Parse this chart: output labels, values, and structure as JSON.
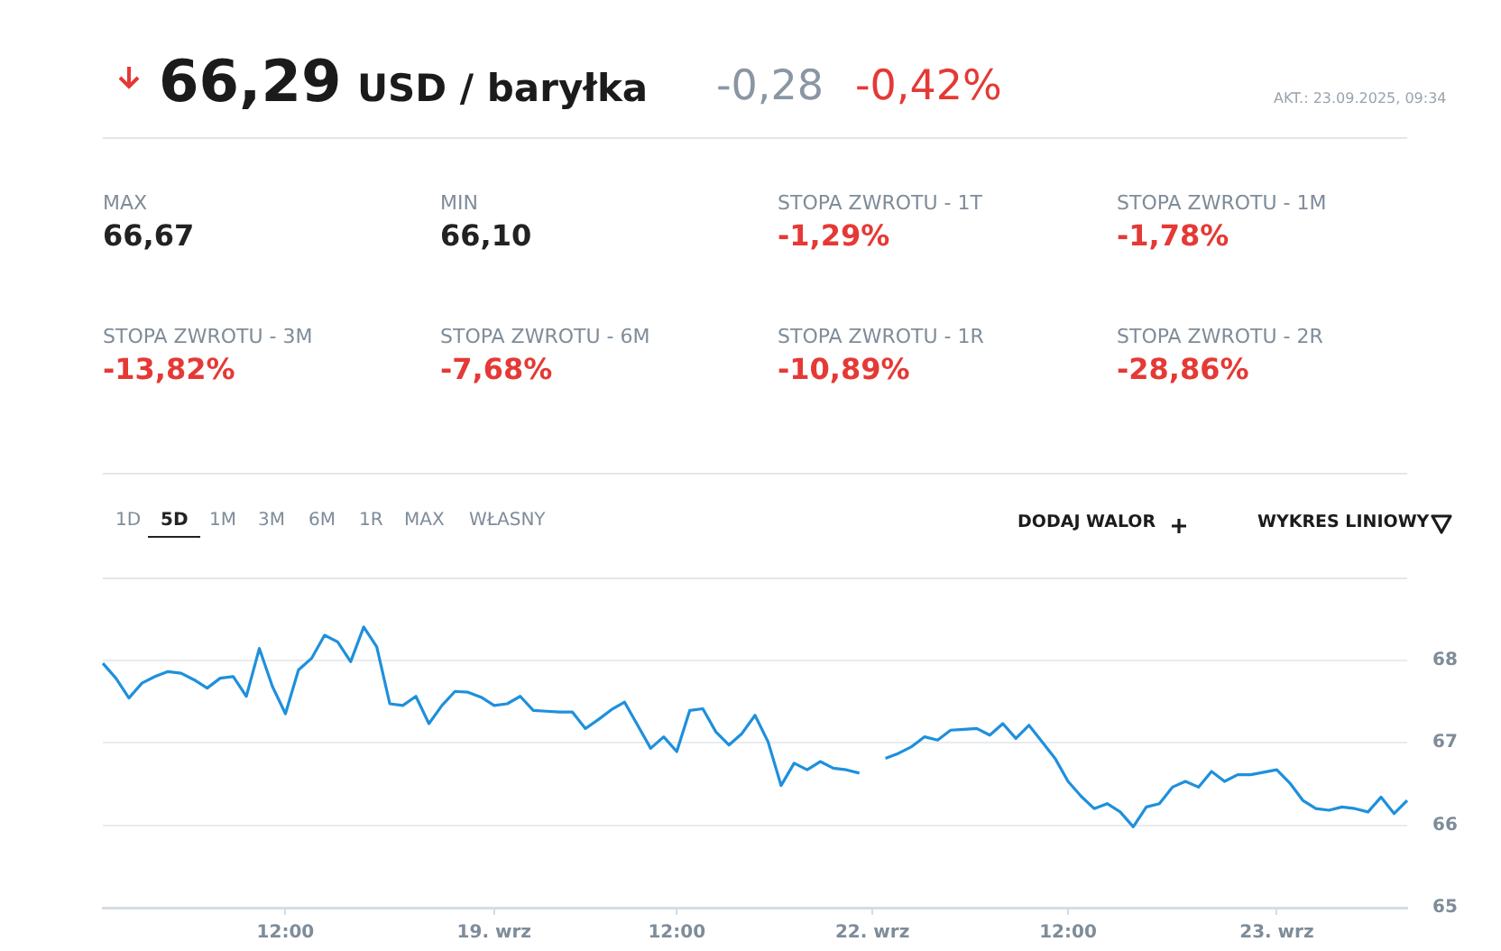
{
  "chart_data": {
    "type": "line",
    "title": "66,29",
    "subtitle": "USD / baryłka",
    "annotations": [
      "-0,28",
      "-0,42%",
      "AKT.: 23.09.2025, 09:34",
      "MAX",
      "66,67",
      "MIN",
      "66,10",
      "STOPA ZWROTU - 1T",
      "-1,29%",
      "STOPA ZWROTU - 1M",
      "-1,78%",
      "STOPA ZWROTU - 3M",
      "-13,82%",
      "STOPA ZWROTU - 6M",
      "-7,68%",
      "STOPA ZWROTU - 1R",
      "-10,89%",
      "STOPA ZWROTU - 2R",
      "-28,86%",
      "1D",
      "5D",
      "1M",
      "3M",
      "6M",
      "1R",
      "MAX",
      "WŁASNY",
      "DODAJ WALOR",
      "WYKRES LINIOWY"
    ],
    "categories": [
      null,
      null,
      null,
      null,
      null,
      null,
      null,
      null,
      null,
      null,
      null,
      null,
      null,
      null,
      "12:00",
      null,
      null,
      null,
      null,
      null,
      null,
      null,
      null,
      null,
      null,
      null,
      null,
      null,
      null,
      null,
      "19. wrz",
      null,
      null,
      null,
      null,
      null,
      null,
      null,
      null,
      null,
      null,
      null,
      null,
      null,
      "12:00",
      null,
      null,
      null,
      null,
      null,
      null,
      null,
      null,
      null,
      null,
      null,
      null,
      null,
      null,
      "22. wrz",
      null,
      null,
      null,
      null,
      null,
      null,
      null,
      null,
      null,
      null,
      null,
      null,
      null,
      null,
      "12:00",
      null,
      null,
      null,
      null,
      null,
      null,
      null,
      null,
      null,
      null,
      null,
      null,
      null,
      null,
      null,
      "23. wrz",
      null,
      null,
      null,
      null,
      null,
      null,
      null,
      null,
      null,
      null
    ],
    "series": [
      {
        "color": "#1e90dc",
        "values": [
          67.96,
          67.78,
          67.54,
          67.72,
          67.8,
          67.86,
          67.84,
          67.76,
          67.66,
          67.78,
          67.8,
          67.56,
          68.14,
          67.68,
          67.35,
          67.88,
          68.02,
          68.3,
          68.22,
          67.98,
          68.4,
          68.16,
          67.47,
          67.45,
          67.56,
          67.23,
          67.45,
          67.62,
          67.61,
          67.55,
          67.45,
          67.47,
          67.56,
          67.39,
          67.38,
          67.37,
          67.37,
          67.17,
          67.28,
          67.4,
          67.49,
          67.21,
          66.93,
          67.07,
          66.89,
          67.39,
          67.41,
          67.13,
          66.97,
          67.11,
          67.33,
          67.01,
          66.48,
          66.75,
          66.67,
          66.77,
          66.69,
          66.67,
          66.63,
          null,
          66.81,
          66.87,
          66.95,
          67.07,
          67.03,
          67.15,
          67.16,
          67.17,
          67.09,
          67.23,
          67.05,
          67.21,
          67.01,
          66.81,
          66.53,
          66.35,
          66.2,
          66.26,
          66.16,
          65.98,
          66.22,
          66.26,
          66.46,
          66.53,
          66.46,
          66.65,
          66.53,
          66.61,
          66.61,
          66.64,
          66.67,
          66.51,
          66.3,
          66.2,
          66.18,
          66.22,
          66.2,
          66.16,
          66.34,
          66.14,
          66.3
        ]
      }
    ],
    "ylim": [
      65,
      69
    ],
    "yticks": [
      65,
      66,
      67,
      68
    ],
    "grid": "y",
    "legend": false,
    "marker": "none",
    "line_style": "solid"
  }
}
